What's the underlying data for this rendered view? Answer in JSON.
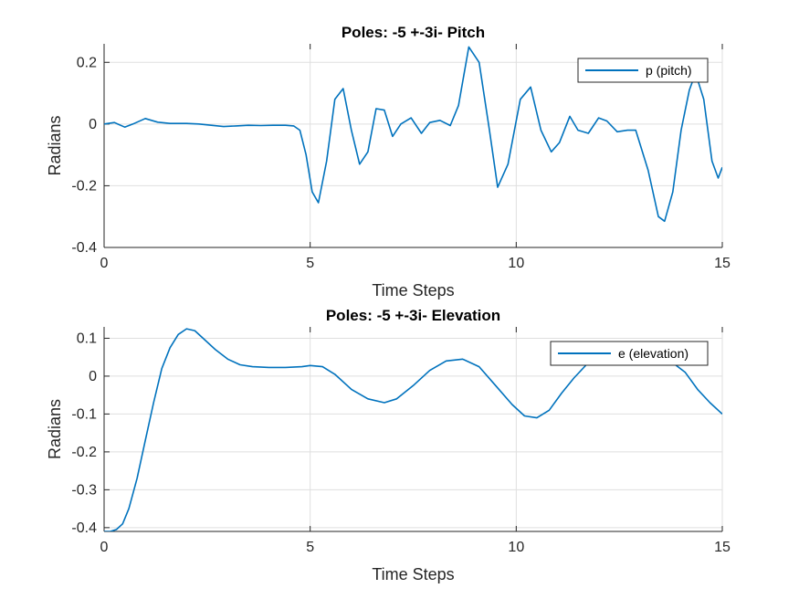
{
  "colors": {
    "series": "#0072BD",
    "background": "#ffffff",
    "grid": "#dfdfdf",
    "axis": "#262626"
  },
  "chart_data": [
    {
      "type": "line",
      "title": "Poles: -5 +-3i- Pitch",
      "xlabel": "Time Steps",
      "ylabel": "Radians",
      "xlim": [
        0,
        15
      ],
      "ylim": [
        -0.4,
        0.26
      ],
      "xticks": [
        0,
        5,
        10,
        15
      ],
      "xtick_labels": [
        "0",
        "5",
        "10",
        "15"
      ],
      "yticks": [
        0.2,
        0,
        -0.2,
        -0.4
      ],
      "ytick_labels": [
        "0.2",
        "0",
        "-0.2",
        "-0.4"
      ],
      "grid": true,
      "legend": "top-right",
      "series": [
        {
          "name": "p (pitch)",
          "x": [
            0,
            0.25,
            0.5,
            0.7,
            1.0,
            1.3,
            1.6,
            2.0,
            2.3,
            2.6,
            2.9,
            3.2,
            3.5,
            3.8,
            4.1,
            4.4,
            4.6,
            4.75,
            4.9,
            5.05,
            5.2,
            5.4,
            5.6,
            5.8,
            6.0,
            6.2,
            6.4,
            6.6,
            6.8,
            7.0,
            7.2,
            7.45,
            7.7,
            7.9,
            8.15,
            8.4,
            8.6,
            8.85,
            9.1,
            9.35,
            9.55,
            9.8,
            10.1,
            10.35,
            10.6,
            10.85,
            11.05,
            11.3,
            11.5,
            11.75,
            12.0,
            12.2,
            12.45,
            12.7,
            12.9,
            13.2,
            13.45,
            13.6,
            13.8,
            14.0,
            14.2,
            14.35,
            14.55,
            14.75,
            14.9,
            15.0
          ],
          "values": [
            0.0,
            0.005,
            -0.01,
            0.0,
            0.018,
            0.006,
            0.002,
            0.002,
            0.0,
            -0.004,
            -0.008,
            -0.006,
            -0.004,
            -0.005,
            -0.004,
            -0.004,
            -0.006,
            -0.02,
            -0.1,
            -0.22,
            -0.255,
            -0.12,
            0.08,
            0.115,
            -0.02,
            -0.13,
            -0.09,
            0.05,
            0.045,
            -0.04,
            0.0,
            0.02,
            -0.03,
            0.005,
            0.012,
            -0.005,
            0.06,
            0.25,
            0.2,
            -0.02,
            -0.205,
            -0.13,
            0.08,
            0.12,
            -0.02,
            -0.09,
            -0.06,
            0.025,
            -0.02,
            -0.03,
            0.02,
            0.01,
            -0.025,
            -0.02,
            -0.02,
            -0.15,
            -0.3,
            -0.315,
            -0.22,
            -0.02,
            0.11,
            0.165,
            0.08,
            -0.12,
            -0.175,
            -0.14
          ]
        }
      ]
    },
    {
      "type": "line",
      "title": "Poles: -5 +-3i- Elevation",
      "xlabel": "Time Steps",
      "ylabel": "Radians",
      "xlim": [
        0,
        15
      ],
      "ylim": [
        -0.41,
        0.13
      ],
      "xticks": [
        0,
        5,
        10,
        15
      ],
      "xtick_labels": [
        "0",
        "5",
        "10",
        "15"
      ],
      "yticks": [
        0.1,
        0,
        -0.1,
        -0.2,
        -0.3,
        -0.4
      ],
      "ytick_labels": [
        "0.1",
        "0",
        "-0.1",
        "-0.2",
        "-0.3",
        "-0.4"
      ],
      "grid": true,
      "legend": "top-right",
      "series": [
        {
          "name": "e (elevation)",
          "x": [
            0,
            0.15,
            0.3,
            0.45,
            0.6,
            0.8,
            1.0,
            1.2,
            1.4,
            1.6,
            1.8,
            2.0,
            2.2,
            2.4,
            2.7,
            3.0,
            3.3,
            3.6,
            4.0,
            4.4,
            4.8,
            5.0,
            5.3,
            5.6,
            6.0,
            6.4,
            6.8,
            7.1,
            7.5,
            7.9,
            8.3,
            8.7,
            9.1,
            9.5,
            9.9,
            10.2,
            10.5,
            10.8,
            11.1,
            11.4,
            11.7,
            12.0,
            12.3,
            12.6,
            12.9,
            13.2,
            13.5,
            13.8,
            14.1,
            14.4,
            14.7,
            15.0
          ],
          "values": [
            -0.41,
            -0.41,
            -0.405,
            -0.39,
            -0.35,
            -0.27,
            -0.17,
            -0.07,
            0.02,
            0.075,
            0.11,
            0.125,
            0.12,
            0.1,
            0.07,
            0.045,
            0.03,
            0.025,
            0.023,
            0.023,
            0.025,
            0.028,
            0.025,
            0.005,
            -0.035,
            -0.06,
            -0.07,
            -0.06,
            -0.025,
            0.015,
            0.04,
            0.045,
            0.025,
            -0.025,
            -0.075,
            -0.105,
            -0.11,
            -0.09,
            -0.045,
            -0.005,
            0.03,
            0.05,
            0.05,
            0.045,
            0.04,
            0.035,
            0.035,
            0.035,
            0.01,
            -0.035,
            -0.07,
            -0.1
          ]
        }
      ]
    }
  ]
}
